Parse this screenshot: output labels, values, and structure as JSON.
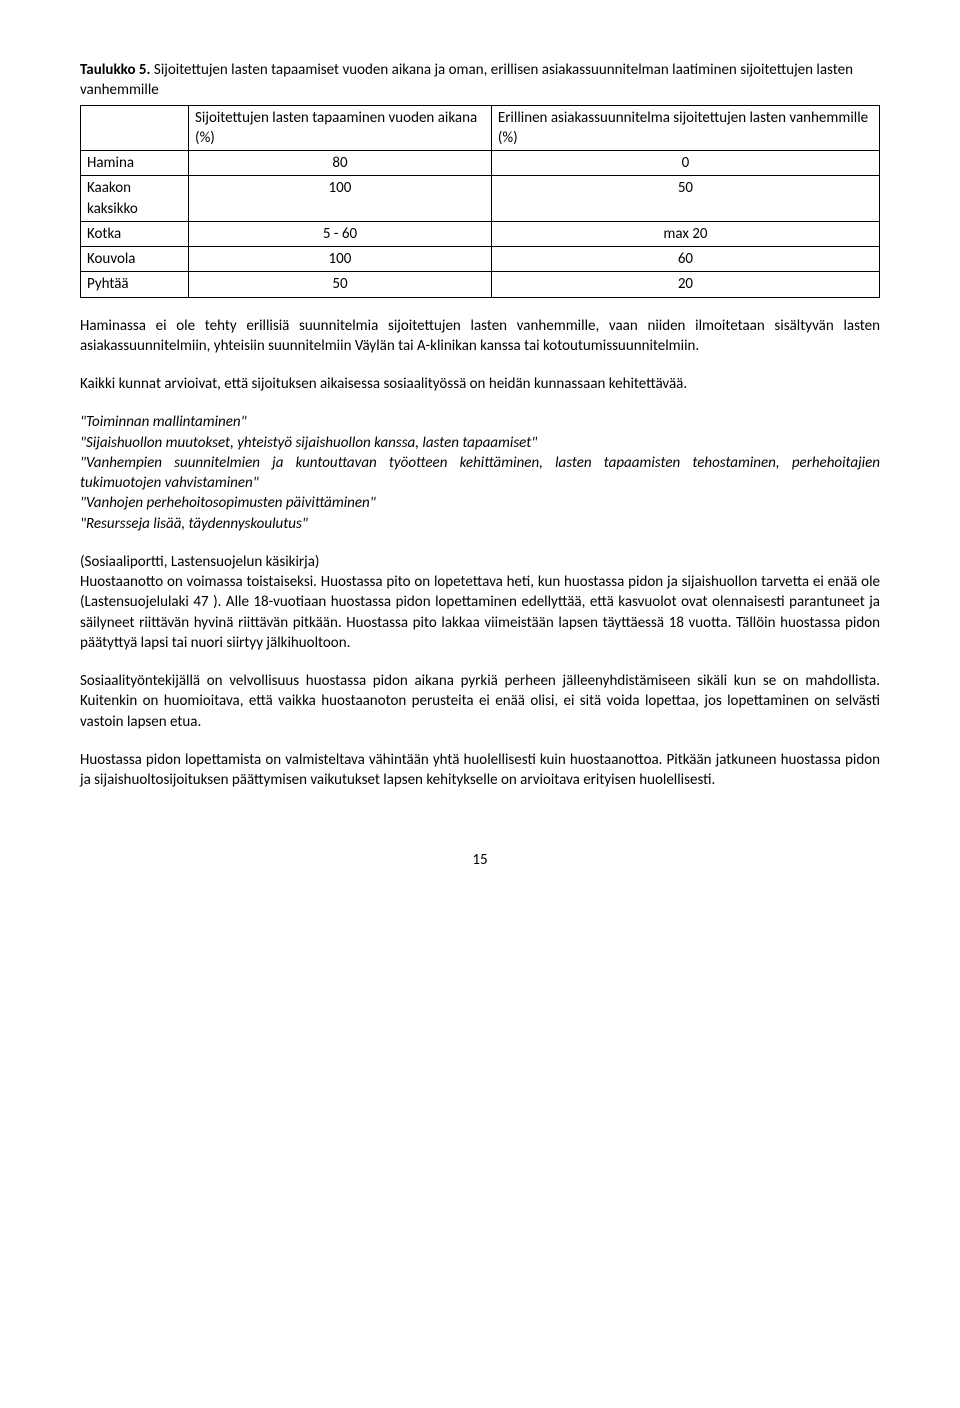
{
  "title": {
    "bold": "Taulukko 5.",
    "rest": " Sijoitettujen lasten tapaamiset vuoden aikana ja oman, erillisen asiakassuunnitelman laatiminen sijoitettujen lasten vanhemmille"
  },
  "table": {
    "header_col1": "Sijoitettujen lasten tapaaminen vuoden aikana (%)",
    "header_col2": "Erillinen asiakassuunnitelma sijoitettujen lasten vanhemmille (%)",
    "rows": [
      {
        "name": "Hamina",
        "c1": "80",
        "c2": "0"
      },
      {
        "name": "Kaakon kaksikko",
        "c1": "100",
        "c2": "50"
      },
      {
        "name": "Kotka",
        "c1": "5 - 60",
        "c2": "max 20"
      },
      {
        "name": "Kouvola",
        "c1": "100",
        "c2": "60"
      },
      {
        "name": "Pyhtää",
        "c1": "50",
        "c2": "20"
      }
    ]
  },
  "para1": "Haminassa ei ole tehty erillisiä suunnitelmia sijoitettujen lasten vanhemmille, vaan niiden ilmoitetaan sisältyvän lasten asiakassuunnitelmiin, yhteisiin suunnitelmiin Väylän tai A-klinikan kanssa tai kotoutumissuunnitelmiin.",
  "para2": "Kaikki kunnat arvioivat, että sijoituksen aikaisessa sosiaalityössä on heidän kunnassaan kehitettävää.",
  "quotes": {
    "q1": "\"Toiminnan mallintaminen\"",
    "q2": "\"Sijaishuollon muutokset, yhteistyö sijaishuollon kanssa, lasten tapaamiset\"",
    "q3": "\"Vanhempien suunnitelmien ja kuntouttavan työotteen kehittäminen, lasten tapaamisten tehostaminen, perhehoitajien tukimuotojen vahvistaminen\"",
    "q4": "\"Vanhojen perhehoitosopimusten päivittäminen\"",
    "q5": "\"Resursseja lisää, täydennyskoulutus\""
  },
  "para3": "(Sosiaaliportti, Lastensuojelun käsikirja)\nHuostaanotto on voimassa toistaiseksi. Huostassa pito on lopetettava heti, kun huostassa pidon ja sijaishuollon tarvetta ei enää ole (Lastensuojelulaki 47 ). Alle 18-vuotiaan huostassa pidon lopettaminen edellyttää, että kasvuolot ovat olennaisesti parantuneet ja säilyneet riittävän hyvinä riittävän pitkään. Huostassa pito lakkaa viimeistään lapsen täyttäessä 18 vuotta. Tällöin huostassa pidon päätyttyä lapsi tai nuori siirtyy jälkihuoltoon.",
  "para4": "Sosiaalityöntekijällä on velvollisuus huostassa pidon aikana pyrkiä perheen jälleenyhdistämiseen sikäli kun se on mahdollista. Kuitenkin on huomioitava, että vaikka huostaanoton perusteita ei enää olisi, ei sitä voida lopettaa, jos lopettaminen on selvästi vastoin lapsen etua.",
  "para5": "Huostassa pidon lopettamista on valmisteltava vähintään yhtä huolellisesti kuin huostaanottoa. Pitkään jatkuneen huostassa pidon ja sijaishuoltosijoituksen päättymisen vaikutukset lapsen kehitykselle on arvioitava erityisen huolellisesti.",
  "pagenum": "15"
}
